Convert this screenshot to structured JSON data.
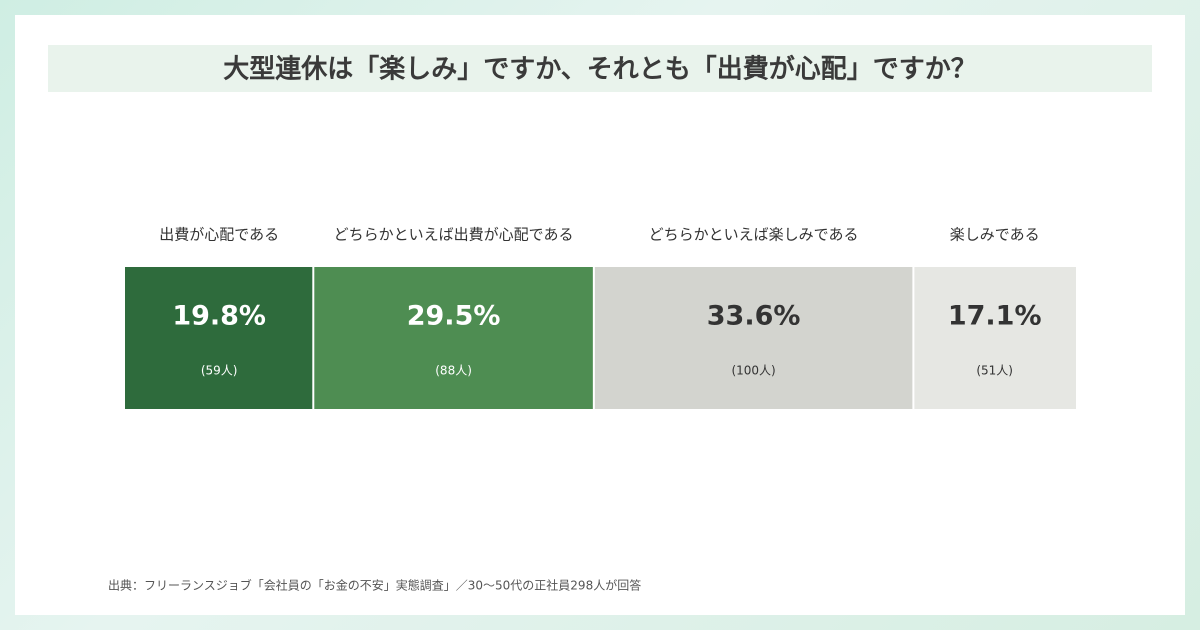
{
  "chart_data": {
    "type": "stacked_bar",
    "title": "大型連休は「楽しみ」ですか、それとも「出費が心配」ですか？",
    "categories": [
      "出費が心配である",
      "どちらかといえば出費が心配である",
      "どちらかといえば楽しみである",
      "楽しみである"
    ],
    "values": [
      19.8,
      29.5,
      33.6,
      17.1
    ],
    "value_labels": [
      "19.8%",
      "29.5%",
      "33.6%",
      "17.1%"
    ],
    "counts": [
      59,
      88,
      100,
      51
    ],
    "count_labels": [
      "(59人)",
      "(88人)",
      "(100人)",
      "(51人)"
    ],
    "colors": [
      "#2e6b3c",
      "#4e8d52",
      "#d3d4cf",
      "#e6e7e3"
    ],
    "text_colors": [
      "#ffffff",
      "#ffffff",
      "#333333",
      "#333333"
    ],
    "source": "出典：フリーランスジョブ「会社員の「お金の不安」実態調査」／30〜50代の正社員298人が回答"
  }
}
